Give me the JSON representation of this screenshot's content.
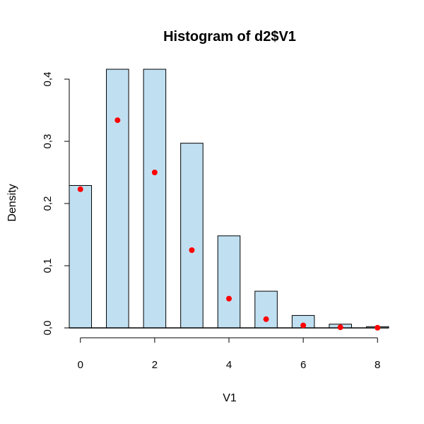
{
  "chart_data": {
    "type": "bar",
    "title": "Histogram of d2$V1",
    "xlabel": "V1",
    "ylabel": "Density",
    "bars": [
      {
        "from": -0.3,
        "to": 0.3,
        "density": 0.229
      },
      {
        "from": 0.7,
        "to": 1.3,
        "density": 0.44
      },
      {
        "from": 1.7,
        "to": 2.3,
        "density": 0.435
      },
      {
        "from": 2.7,
        "to": 3.3,
        "density": 0.297
      },
      {
        "from": 3.7,
        "to": 4.3,
        "density": 0.148
      },
      {
        "from": 4.7,
        "to": 5.3,
        "density": 0.059
      },
      {
        "from": 5.7,
        "to": 6.3,
        "density": 0.02
      },
      {
        "from": 6.7,
        "to": 7.3,
        "density": 0.006
      },
      {
        "from": 7.7,
        "to": 8.3,
        "density": 0.002
      }
    ],
    "points": [
      {
        "x": 0,
        "y": 0.223
      },
      {
        "x": 1,
        "y": 0.334
      },
      {
        "x": 2,
        "y": 0.25
      },
      {
        "x": 3,
        "y": 0.125
      },
      {
        "x": 4,
        "y": 0.047
      },
      {
        "x": 5,
        "y": 0.014
      },
      {
        "x": 6,
        "y": 0.004
      },
      {
        "x": 7,
        "y": 0.001
      },
      {
        "x": 8,
        "y": 0.0003
      }
    ],
    "x_ticks": [
      {
        "value": 0,
        "label": "0"
      },
      {
        "value": 2,
        "label": "2"
      },
      {
        "value": 4,
        "label": "4"
      },
      {
        "value": 6,
        "label": "6"
      },
      {
        "value": 8,
        "label": "8"
      }
    ],
    "y_ticks": [
      {
        "value": 0.0,
        "label": "0,0"
      },
      {
        "value": 0.1,
        "label": "0,1"
      },
      {
        "value": 0.2,
        "label": "0,2"
      },
      {
        "value": 0.3,
        "label": "0,3"
      },
      {
        "value": 0.4,
        "label": "0,4"
      }
    ],
    "xlim": [
      -0.3,
      8.3
    ],
    "ylim": [
      0,
      0.4
    ],
    "colors": {
      "bar_fill": "#c0e0f2",
      "bar_stroke": "#000000",
      "point": "#ff0000"
    },
    "grid": false
  }
}
